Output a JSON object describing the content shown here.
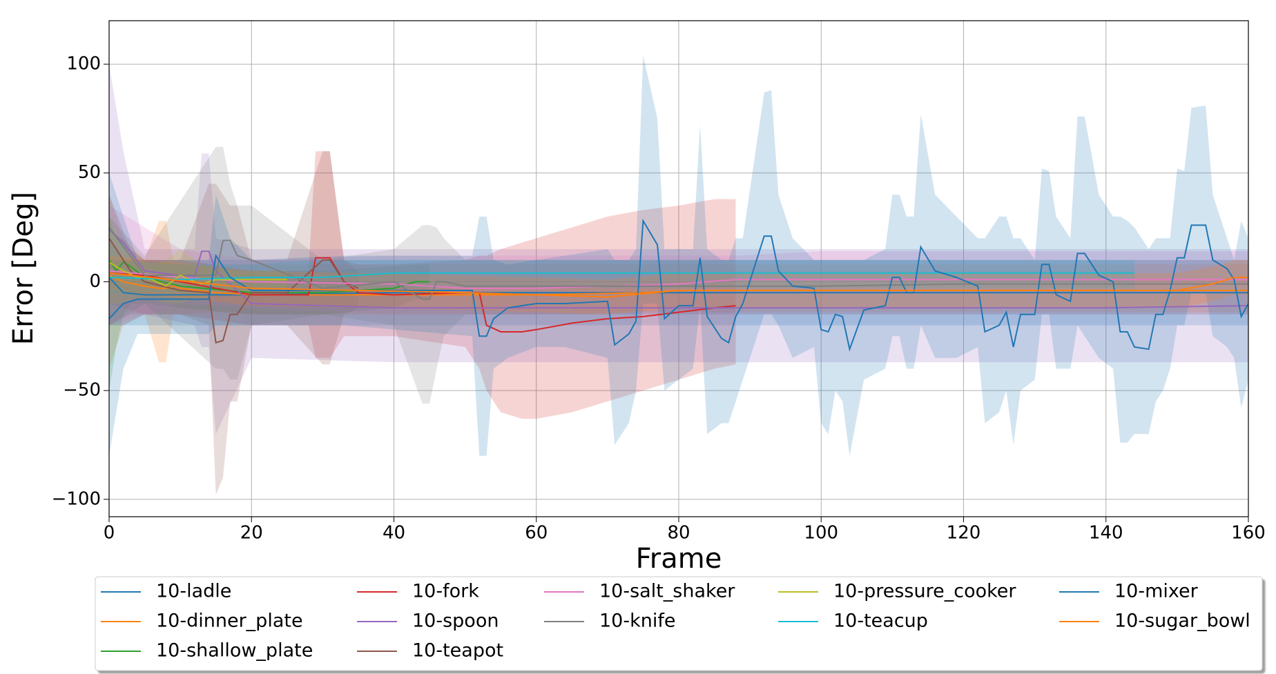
{
  "chart_data": {
    "type": "line",
    "xlabel": "Frame",
    "ylabel": "Error [Deg]",
    "xlim": [
      0,
      160
    ],
    "ylim": [
      -108,
      120
    ],
    "xticks": [
      0,
      20,
      40,
      60,
      80,
      100,
      120,
      140,
      160
    ],
    "yticks": [
      {
        "value": -100,
        "label": "−100"
      },
      {
        "value": -50,
        "label": "−50"
      },
      0,
      50,
      100
    ],
    "grid": true,
    "legend": "below",
    "series": [
      {
        "name": "10-ladle",
        "color": "#1f77b4",
        "x": [
          0,
          2,
          5,
          20,
          40,
          80,
          120,
          160
        ],
        "values": [
          2,
          -5,
          -6,
          -6,
          -5,
          -5,
          -5,
          -5
        ],
        "upper": [
          20,
          10,
          10,
          10,
          10,
          10,
          10,
          10
        ],
        "lower": [
          -20,
          -20,
          -20,
          -20,
          -20,
          -20,
          -20,
          -20
        ]
      },
      {
        "name": "10-dinner_plate",
        "color": "#ff7f0e",
        "x": [
          0,
          2,
          5,
          7,
          8,
          9,
          10,
          15,
          20,
          40,
          60,
          75,
          80,
          100,
          120,
          140,
          160
        ],
        "values": [
          3,
          0,
          -2,
          -3,
          -3,
          -2,
          -3,
          -5,
          -6,
          -6,
          -6,
          -5,
          -4,
          -4,
          -4,
          -4,
          -4
        ],
        "upper": [
          40,
          20,
          10,
          28,
          28,
          10,
          10,
          8,
          8,
          8,
          8,
          8,
          8,
          8,
          8,
          8,
          8
        ],
        "lower": [
          -40,
          -20,
          -15,
          -37,
          -37,
          -15,
          -15,
          -14,
          -15,
          -15,
          -15,
          -14,
          -14,
          -14,
          -14,
          -14,
          -14
        ]
      },
      {
        "name": "10-shallow_plate",
        "color": "#2ca02c",
        "x": [
          0,
          1,
          2,
          3,
          5,
          10,
          20,
          30,
          40,
          43,
          45
        ],
        "values": [
          10,
          5,
          9,
          7,
          2,
          -2,
          -5,
          -5,
          -3,
          0,
          0
        ],
        "upper": [
          30,
          20,
          20,
          15,
          10,
          8,
          5,
          5,
          7,
          8,
          8
        ],
        "lower": [
          -50,
          -30,
          -15,
          -10,
          -10,
          -12,
          -15,
          -15,
          -12,
          -8,
          -8
        ]
      },
      {
        "name": "10-fork",
        "color": "#d62728",
        "x": [
          0,
          5,
          10,
          20,
          28,
          29,
          31,
          33,
          35,
          40,
          50,
          52,
          53,
          55,
          58,
          60,
          65,
          70,
          75,
          80,
          85,
          88
        ],
        "values": [
          4,
          3,
          0,
          -6,
          -6,
          11,
          11,
          0,
          -5,
          -6,
          -5,
          -5,
          -20,
          -23,
          -23,
          -22,
          -19,
          -17,
          -16,
          -14,
          -12,
          -11
        ],
        "upper": [
          10,
          10,
          10,
          5,
          5,
          60,
          60,
          10,
          8,
          8,
          10,
          12,
          12,
          15,
          18,
          20,
          25,
          30,
          33,
          35,
          38,
          38
        ],
        "lower": [
          -10,
          -15,
          -15,
          -20,
          -20,
          -35,
          -35,
          -25,
          -25,
          -25,
          -30,
          -40,
          -50,
          -60,
          -63,
          -63,
          -60,
          -55,
          -50,
          -45,
          -40,
          -38
        ]
      },
      {
        "name": "10-spoon",
        "color": "#9467bd",
        "x": [
          0,
          2,
          5,
          12,
          13,
          14,
          15,
          20,
          40,
          60,
          80,
          100,
          120,
          140,
          160
        ],
        "values": [
          24,
          18,
          5,
          2,
          14,
          14,
          5,
          -10,
          -12,
          -12,
          -12,
          -12,
          -12,
          -12,
          -11
        ],
        "upper": [
          100,
          60,
          15,
          15,
          59,
          59,
          20,
          15,
          15,
          15,
          15,
          15,
          15,
          15,
          15
        ],
        "lower": [
          -20,
          -20,
          -15,
          -20,
          -30,
          -30,
          -70,
          -35,
          -37,
          -37,
          -37,
          -37,
          -37,
          -37,
          -37
        ]
      },
      {
        "name": "10-teapot",
        "color": "#8c564b",
        "x": [
          0,
          3,
          5,
          10,
          14,
          15,
          16,
          17,
          18,
          20,
          25,
          30,
          31,
          33,
          35
        ],
        "values": [
          20,
          5,
          0,
          -4,
          -5,
          -28,
          -27,
          -15,
          -15,
          -5,
          -5,
          10,
          10,
          0,
          -3
        ],
        "upper": [
          40,
          15,
          10,
          10,
          45,
          45,
          40,
          35,
          35,
          10,
          10,
          60,
          60,
          10,
          5
        ],
        "lower": [
          -20,
          -15,
          -15,
          -15,
          -20,
          -98,
          -90,
          -55,
          -55,
          -20,
          -20,
          -38,
          -38,
          -15,
          -12
        ]
      },
      {
        "name": "10-salt_shaker",
        "color": "#e377c2",
        "x": [
          0,
          10,
          20,
          40,
          50,
          60,
          70,
          80,
          88,
          100,
          120,
          140,
          160
        ],
        "values": [
          5,
          2,
          0,
          -1,
          -3,
          -3,
          -2,
          -1,
          1,
          1,
          1,
          1,
          1
        ],
        "upper": [
          35,
          15,
          10,
          12,
          12,
          12,
          12,
          12,
          12,
          14,
          14,
          14,
          14
        ],
        "lower": [
          -20,
          -10,
          -12,
          -15,
          -15,
          -15,
          -15,
          -15,
          -15,
          -15,
          -15,
          -15,
          -15
        ]
      },
      {
        "name": "10-knife",
        "color": "#7f7f7f",
        "x": [
          0,
          5,
          15,
          16,
          17,
          18,
          20,
          30,
          40,
          44,
          45,
          46,
          47,
          50,
          60,
          80,
          100,
          120,
          140,
          160
        ],
        "values": [
          25,
          3,
          3,
          19,
          19,
          12,
          10,
          -3,
          0,
          -8,
          -8,
          0,
          0,
          -2,
          -2,
          -2,
          -2,
          -1,
          -1,
          -1
        ],
        "upper": [
          30,
          12,
          62,
          62,
          45,
          35,
          35,
          10,
          15,
          26,
          26,
          25,
          20,
          10,
          10,
          10,
          10,
          10,
          10,
          10
        ],
        "lower": [
          -20,
          -10,
          -40,
          -40,
          -45,
          -45,
          -20,
          -15,
          -20,
          -56,
          -56,
          -40,
          -25,
          -15,
          -15,
          -15,
          -15,
          -15,
          -15,
          -15
        ]
      },
      {
        "name": "10-pressure_cooker",
        "color": "#bcbd22",
        "x": [
          0,
          2,
          4,
          6,
          8,
          10,
          12,
          13,
          15,
          20,
          25
        ],
        "values": [
          9,
          5,
          2,
          1,
          -2,
          3,
          0,
          -1,
          1,
          1,
          1
        ],
        "upper": [
          30,
          15,
          10,
          8,
          10,
          15,
          10,
          8,
          6,
          5,
          5
        ],
        "lower": [
          -10,
          -10,
          -8,
          -8,
          -10,
          -10,
          -8,
          -8,
          -6,
          -5,
          -5
        ]
      },
      {
        "name": "10-teacup",
        "color": "#17becf",
        "x": [
          0,
          10,
          20,
          30,
          40,
          60,
          80,
          100,
          120,
          144
        ],
        "values": [
          2,
          1,
          2,
          2,
          4,
          4,
          4,
          4,
          4,
          4
        ],
        "upper": [
          10,
          8,
          8,
          10,
          10,
          10,
          10,
          10,
          10,
          10
        ],
        "lower": [
          -5,
          -5,
          -5,
          -5,
          -3,
          -3,
          -3,
          -3,
          -3,
          -3
        ]
      },
      {
        "name": "10-mixer",
        "color": "#1f77b4",
        "x": [
          0,
          2,
          4,
          14,
          15,
          17,
          20,
          33,
          51,
          52,
          53,
          54,
          56,
          60,
          64,
          70,
          71,
          73,
          74,
          75,
          77,
          78,
          80,
          82,
          83,
          84,
          86,
          87,
          88,
          89,
          92,
          93,
          94,
          96,
          99,
          100,
          101,
          102,
          103,
          104,
          106,
          109,
          110,
          111,
          112,
          113,
          114,
          116,
          119,
          122,
          123,
          125,
          126,
          127,
          128,
          130,
          131,
          132,
          133,
          135,
          136,
          137,
          139,
          141,
          142,
          143,
          144,
          146,
          147,
          148,
          149,
          150,
          151,
          152,
          154,
          155,
          157,
          158,
          159,
          160
        ],
        "values": [
          -17,
          -10,
          -8,
          -8,
          12,
          2,
          -4,
          -4,
          -4,
          -25,
          -25,
          -17,
          -12,
          -10,
          -10,
          -9,
          -29,
          -24,
          -18,
          28,
          17,
          -17,
          -11,
          -11,
          11,
          -16,
          -26,
          -28,
          -16,
          -10,
          21,
          21,
          5,
          -2,
          -3,
          -22,
          -23,
          -15,
          -16,
          -31,
          -13,
          -11,
          2,
          2,
          -5,
          -5,
          16,
          5,
          2,
          -2,
          -23,
          -20,
          -14,
          -30,
          -15,
          -15,
          8,
          8,
          -6,
          -9,
          13,
          13,
          3,
          0,
          -23,
          -23,
          -30,
          -31,
          -15,
          -15,
          -4,
          11,
          11,
          26,
          26,
          10,
          6,
          1,
          -16,
          -10
        ],
        "upper": [
          50,
          30,
          10,
          10,
          40,
          20,
          10,
          12,
          12,
          30,
          30,
          10,
          8,
          10,
          12,
          15,
          10,
          10,
          15,
          104,
          75,
          15,
          15,
          15,
          72,
          15,
          10,
          10,
          20,
          20,
          87,
          88,
          40,
          20,
          10,
          10,
          10,
          10,
          10,
          10,
          10,
          15,
          40,
          40,
          30,
          30,
          77,
          40,
          30,
          20,
          20,
          30,
          30,
          20,
          20,
          10,
          52,
          51,
          30,
          20,
          76,
          76,
          40,
          30,
          30,
          28,
          25,
          15,
          20,
          20,
          20,
          52,
          51,
          80,
          81,
          40,
          20,
          10,
          28,
          20
        ],
        "lower": [
          -80,
          -40,
          -24,
          -24,
          -20,
          -20,
          -20,
          -20,
          -25,
          -80,
          -80,
          -40,
          -35,
          -30,
          -30,
          -35,
          -75,
          -65,
          -50,
          -10,
          -10,
          -50,
          -45,
          -40,
          -10,
          -70,
          -65,
          -65,
          -55,
          -45,
          -15,
          -15,
          -20,
          -35,
          -30,
          -65,
          -70,
          -50,
          -55,
          -80,
          -45,
          -40,
          -25,
          -25,
          -40,
          -40,
          -20,
          -35,
          -35,
          -30,
          -65,
          -60,
          -50,
          -75,
          -50,
          -45,
          -15,
          -15,
          -40,
          -40,
          -20,
          -25,
          -35,
          -40,
          -74,
          -74,
          -70,
          -70,
          -55,
          -50,
          -40,
          -20,
          -20,
          -5,
          -5,
          -25,
          -30,
          -35,
          -58,
          -45
        ]
      },
      {
        "name": "10-sugar_bowl",
        "color": "#ff7f0e",
        "x": [
          0,
          20,
          50,
          70,
          80,
          100,
          140,
          150,
          155,
          158,
          160
        ],
        "values": [
          4,
          -3,
          -5,
          -7,
          -4,
          -4,
          -4,
          -4,
          -1,
          2,
          2
        ],
        "upper": [
          12,
          5,
          3,
          1,
          4,
          4,
          4,
          4,
          7,
          10,
          10
        ],
        "lower": [
          -4,
          -11,
          -13,
          -15,
          -12,
          -12,
          -12,
          -12,
          -9,
          -6,
          -6
        ]
      }
    ]
  }
}
